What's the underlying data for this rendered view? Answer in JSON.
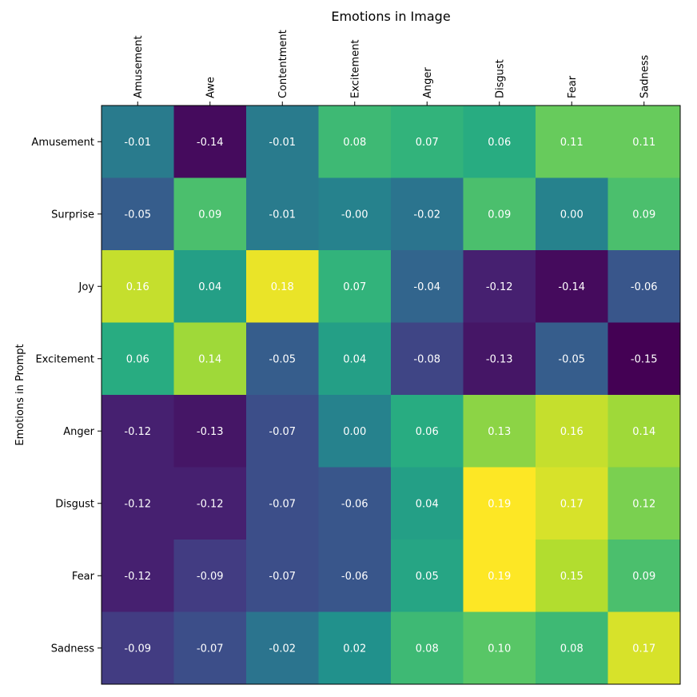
{
  "chart_data": {
    "type": "heatmap",
    "title": "Emotions in Image",
    "xlabel": "Emotions in Image",
    "ylabel": "Emotions in Prompt",
    "x_categories": [
      "Amusement",
      "Awe",
      "Contentment",
      "Excitement",
      "Anger",
      "Disgust",
      "Fear",
      "Sadness"
    ],
    "y_categories": [
      "Amusement",
      "Surprise",
      "Joy",
      "Excitement",
      "Anger",
      "Disgust",
      "Fear",
      "Sadness"
    ],
    "values": [
      [
        -0.01,
        -0.14,
        -0.01,
        0.08,
        0.07,
        0.06,
        0.11,
        0.11
      ],
      [
        -0.05,
        0.09,
        -0.01,
        -0.0,
        -0.02,
        0.09,
        0.0,
        0.09
      ],
      [
        0.16,
        0.04,
        0.18,
        0.07,
        -0.04,
        -0.12,
        -0.14,
        -0.06
      ],
      [
        0.06,
        0.14,
        -0.05,
        0.04,
        -0.08,
        -0.13,
        -0.05,
        -0.15
      ],
      [
        -0.12,
        -0.13,
        -0.07,
        0.0,
        0.06,
        0.13,
        0.16,
        0.14
      ],
      [
        -0.12,
        -0.12,
        -0.07,
        -0.06,
        0.04,
        0.19,
        0.17,
        0.12
      ],
      [
        -0.12,
        -0.09,
        -0.07,
        -0.06,
        0.05,
        0.19,
        0.15,
        0.09
      ],
      [
        -0.09,
        -0.07,
        -0.02,
        0.02,
        0.08,
        0.1,
        0.08,
        0.17
      ]
    ],
    "labels": [
      [
        "-0.01",
        "-0.14",
        "-0.01",
        "0.08",
        "0.07",
        "0.06",
        "0.11",
        "0.11"
      ],
      [
        "-0.05",
        "0.09",
        "-0.01",
        "-0.00",
        "-0.02",
        "0.09",
        "0.00",
        "0.09"
      ],
      [
        "0.16",
        "0.04",
        "0.18",
        "0.07",
        "-0.04",
        "-0.12",
        "-0.14",
        "-0.06"
      ],
      [
        "0.06",
        "0.14",
        "-0.05",
        "0.04",
        "-0.08",
        "-0.13",
        "-0.05",
        "-0.15"
      ],
      [
        "-0.12",
        "-0.13",
        "-0.07",
        "0.00",
        "0.06",
        "0.13",
        "0.16",
        "0.14"
      ],
      [
        "-0.12",
        "-0.12",
        "-0.07",
        "-0.06",
        "0.04",
        "0.19",
        "0.17",
        "0.12"
      ],
      [
        "-0.12",
        "-0.09",
        "-0.07",
        "-0.06",
        "0.05",
        "0.19",
        "0.15",
        "0.09"
      ],
      [
        "-0.09",
        "-0.07",
        "-0.02",
        "0.02",
        "0.08",
        "0.10",
        "0.08",
        "0.17"
      ]
    ],
    "colormap": "viridis",
    "vmin": -0.15,
    "vmax": 0.19,
    "x_tick_position": "top",
    "grid": false
  }
}
